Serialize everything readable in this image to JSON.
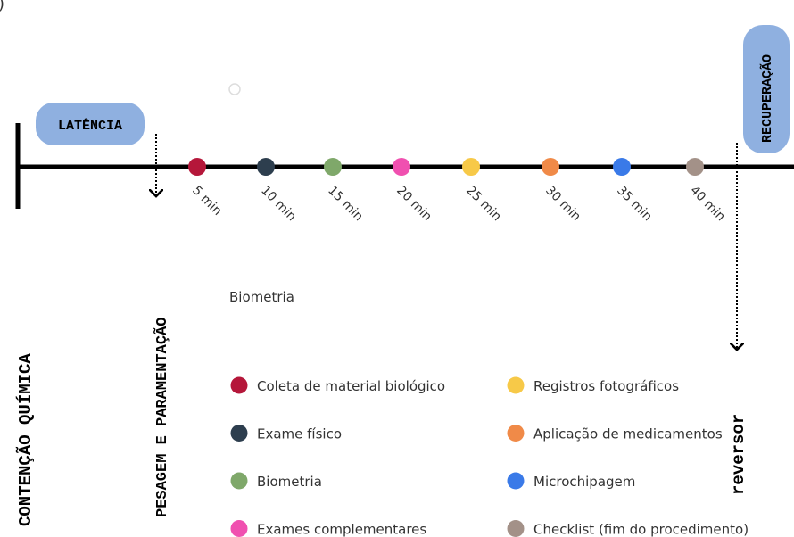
{
  "corner_mark": ")",
  "left_marker": "CONTENÇÃO QUÍMICA",
  "latency": {
    "label": "LATÊNCIA"
  },
  "prep": "PESAGEM E PARAMENTAÇÃO",
  "timeline": {
    "events": [
      {
        "label": "5 min",
        "color": "#b5173a"
      },
      {
        "label": "10 min",
        "color": "#2d3e4e"
      },
      {
        "label": "15 min",
        "color": "#7fa86a"
      },
      {
        "label": "20 min",
        "color": "#f050b0"
      },
      {
        "label": "25 min",
        "color": "#f7c948"
      },
      {
        "label": "30 min",
        "color": "#f08a48"
      },
      {
        "label": "35 min",
        "color": "#3a7ae8"
      },
      {
        "label": "40 min",
        "color": "#a39188"
      }
    ]
  },
  "recovery": {
    "label": "RECUPERAÇÃO"
  },
  "reversal": "reversor",
  "note": "Biometria",
  "legend": {
    "items": [
      {
        "label": "Coleta de material biológico",
        "color": "#b5173a"
      },
      {
        "label": "Exame físico",
        "color": "#2d3e4e"
      },
      {
        "label": "Biometria",
        "color": "#7fa86a"
      },
      {
        "label": "Exames complementares",
        "color": "#f050b0"
      },
      {
        "label": "Registros fotográficos",
        "color": "#f7c948"
      },
      {
        "label": "Aplicação de medicamentos",
        "color": "#f08a48"
      },
      {
        "label": "Microchipagem",
        "color": "#3a7ae8"
      },
      {
        "label": "Checklist (fim do procedimento)",
        "color": "#a39188"
      }
    ]
  }
}
